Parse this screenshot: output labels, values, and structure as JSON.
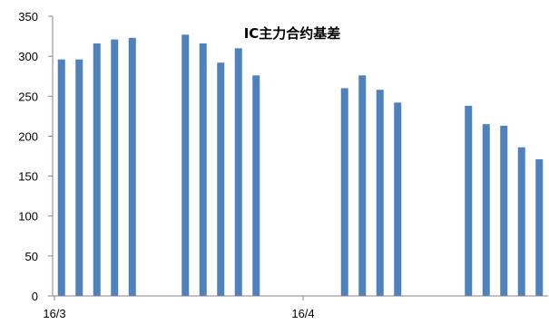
{
  "chart_data": {
    "type": "bar",
    "title": "IC主力合约基差",
    "xlabel": "",
    "ylabel": "",
    "ylim": [
      0,
      350
    ],
    "y_ticks": [
      0,
      50,
      100,
      150,
      200,
      250,
      300,
      350
    ],
    "x_tick_labels": [
      "16/3",
      "16/4"
    ],
    "grid": false,
    "bar_color": "#4f81bd",
    "series": [
      {
        "values": [
          296,
          296,
          316,
          321,
          323,
          null,
          null,
          327,
          316,
          292,
          310,
          276,
          null,
          null,
          null,
          null,
          260,
          276,
          258,
          242,
          null,
          null,
          null,
          238,
          215,
          213,
          186,
          171
        ]
      }
    ]
  }
}
